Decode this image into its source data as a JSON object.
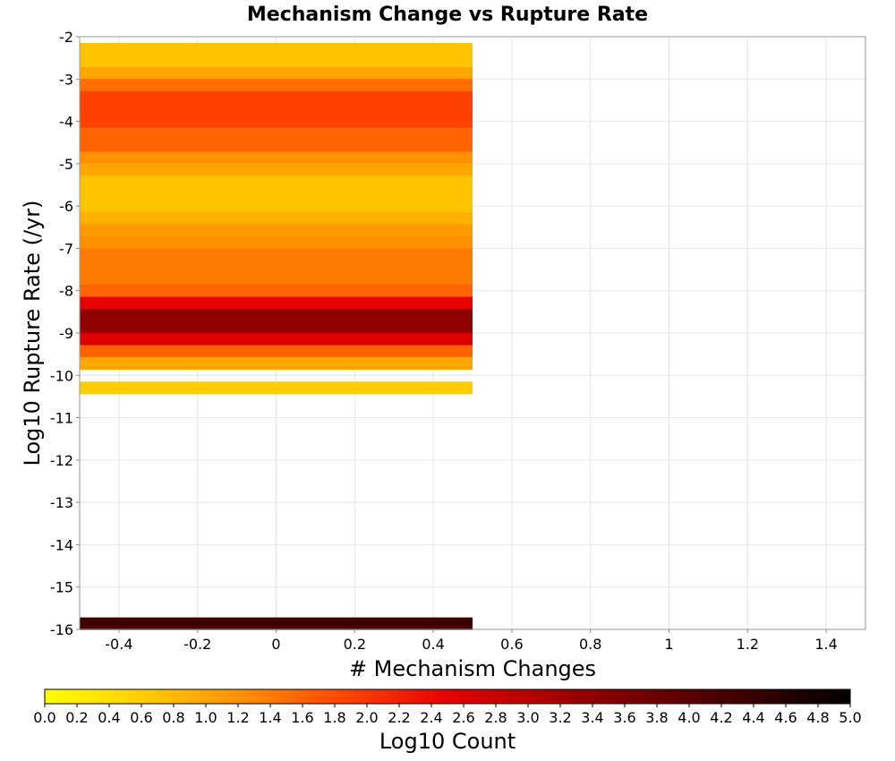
{
  "chart_data": {
    "type": "heatmap",
    "title": "Mechanism Change vs Rupture Rate",
    "xlabel": "# Mechanism Changes",
    "ylabel": "Log10 Rupture Rate (/yr)",
    "xlim": [
      -0.5,
      1.5
    ],
    "ylim": [
      -16,
      -2
    ],
    "x_ticks": [
      -0.4,
      -0.2,
      0,
      0.2,
      0.4,
      0.6,
      0.8,
      1,
      1.2,
      1.4
    ],
    "x_tick_labels": [
      "-0.4",
      "-0.2",
      "0",
      "0.2",
      "0.4",
      "0.6",
      "0.8",
      "1",
      "1.2",
      "1.4"
    ],
    "y_ticks": [
      -2,
      -3,
      -4,
      -5,
      -6,
      -7,
      -8,
      -9,
      -10,
      -11,
      -12,
      -13,
      -14,
      -15,
      -16
    ],
    "y_tick_labels": [
      "-2",
      "-3",
      "-4",
      "-5",
      "-6",
      "-7",
      "-8",
      "-9",
      "-10",
      "-11",
      "-12",
      "-13",
      "-14",
      "-15",
      "-16"
    ],
    "grid": true,
    "bin_x": [
      -0.5,
      0.5
    ],
    "bin_height": 0.286,
    "cells": [
      {
        "x": 0,
        "y": -2.29,
        "log10_count": 0.7
      },
      {
        "x": 0,
        "y": -2.58,
        "log10_count": 0.7
      },
      {
        "x": 0,
        "y": -2.86,
        "log10_count": 1.0
      },
      {
        "x": 0,
        "y": -3.14,
        "log10_count": 1.5
      },
      {
        "x": 0,
        "y": -3.43,
        "log10_count": 1.9
      },
      {
        "x": 0,
        "y": -3.71,
        "log10_count": 1.9
      },
      {
        "x": 0,
        "y": -4.0,
        "log10_count": 1.9
      },
      {
        "x": 0,
        "y": -4.29,
        "log10_count": 1.6
      },
      {
        "x": 0,
        "y": -4.57,
        "log10_count": 1.6
      },
      {
        "x": 0,
        "y": -4.86,
        "log10_count": 1.2
      },
      {
        "x": 0,
        "y": -5.14,
        "log10_count": 1.0
      },
      {
        "x": 0,
        "y": -5.43,
        "log10_count": 0.7
      },
      {
        "x": 0,
        "y": -5.71,
        "log10_count": 0.7
      },
      {
        "x": 0,
        "y": -6.0,
        "log10_count": 0.7
      },
      {
        "x": 0,
        "y": -6.29,
        "log10_count": 0.9
      },
      {
        "x": 0,
        "y": -6.57,
        "log10_count": 1.1
      },
      {
        "x": 0,
        "y": -6.86,
        "log10_count": 1.2
      },
      {
        "x": 0,
        "y": -7.14,
        "log10_count": 1.4
      },
      {
        "x": 0,
        "y": -7.43,
        "log10_count": 1.4
      },
      {
        "x": 0,
        "y": -7.71,
        "log10_count": 1.4
      },
      {
        "x": 0,
        "y": -8.0,
        "log10_count": 1.6
      },
      {
        "x": 0,
        "y": -8.29,
        "log10_count": 2.5
      },
      {
        "x": 0,
        "y": -8.57,
        "log10_count": 3.4
      },
      {
        "x": 0,
        "y": -8.86,
        "log10_count": 3.4
      },
      {
        "x": 0,
        "y": -9.14,
        "log10_count": 2.6
      },
      {
        "x": 0,
        "y": -9.43,
        "log10_count": 1.6
      },
      {
        "x": 0,
        "y": -9.71,
        "log10_count": 1.0
      },
      {
        "x": 0,
        "y": -10.29,
        "log10_count": 0.6
      },
      {
        "x": 0,
        "y": -15.86,
        "log10_count": 4.3
      }
    ],
    "colorbar": {
      "label": "Log10 Count",
      "range": [
        0.0,
        5.0
      ],
      "tick_labels": [
        "0.0",
        "0.2",
        "0.4",
        "0.6",
        "0.8",
        "1.0",
        "1.2",
        "1.4",
        "1.6",
        "1.8",
        "2.0",
        "2.2",
        "2.4",
        "2.6",
        "2.8",
        "3.0",
        "3.2",
        "3.4",
        "3.6",
        "3.8",
        "4.0",
        "4.2",
        "4.4",
        "4.6",
        "4.8",
        "5.0"
      ],
      "colors": [
        "#ffff00",
        "#ffcc00",
        "#ff8c00",
        "#ff4400",
        "#e60000",
        "#aa0000",
        "#6e0000",
        "#3a0000",
        "#000000"
      ]
    }
  }
}
